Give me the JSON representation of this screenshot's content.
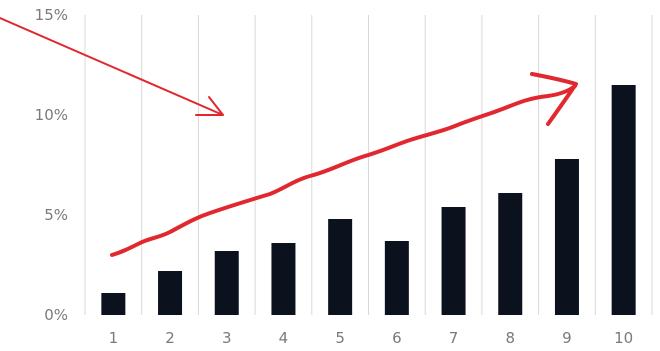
{
  "chart_data": {
    "type": "bar",
    "title": "",
    "xlabel": "",
    "ylabel": "",
    "categories": [
      "1",
      "2",
      "3",
      "4",
      "5",
      "6",
      "7",
      "8",
      "9",
      "10"
    ],
    "values": [
      1.1,
      2.2,
      3.2,
      3.6,
      4.8,
      3.7,
      5.4,
      6.1,
      7.8,
      11.5
    ],
    "ylim": [
      0,
      15
    ],
    "y_ticks": [
      0,
      5,
      10,
      15
    ],
    "y_tick_labels": [
      "0%",
      "5%",
      "10%",
      "15%"
    ],
    "grid": "vertical",
    "legend": "none",
    "colors": {
      "bar": "#0b111d",
      "annotation": "#e0282e",
      "grid": "#d9d9d9",
      "tick_text": "#7a7a7a"
    },
    "annotations": [
      {
        "kind": "hand-drawn-arrow",
        "direction": "down-right",
        "color": "#e0282e"
      },
      {
        "kind": "hand-drawn-trend-arrow",
        "direction": "up-right",
        "color": "#e0282e"
      }
    ]
  }
}
